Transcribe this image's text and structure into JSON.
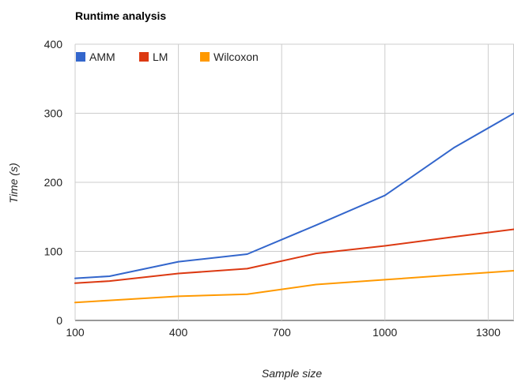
{
  "chart_data": {
    "type": "line",
    "title": "Runtime analysis",
    "xlabel": "Sample size",
    "ylabel": "Time (s)",
    "xlim": [
      100,
      1375
    ],
    "ylim": [
      0,
      400
    ],
    "xticks": [
      100,
      400,
      700,
      1000,
      1300
    ],
    "yticks": [
      0,
      100,
      200,
      300,
      400
    ],
    "xtick_labels": [
      "100",
      "400",
      "700",
      "1000",
      "1300"
    ],
    "ytick_labels": [
      "0",
      "100",
      "200",
      "300",
      "400"
    ],
    "grid": true,
    "legend_position": "top-left",
    "x": [
      100,
      200,
      400,
      600,
      800,
      1000,
      1200,
      1375
    ],
    "series": [
      {
        "name": "AMM",
        "color": "#3366cc",
        "values": [
          61,
          64,
          85,
          96,
          138,
          181,
          250,
          300
        ]
      },
      {
        "name": "LM",
        "color": "#dc3912",
        "values": [
          54,
          57,
          68,
          75,
          97,
          108,
          121,
          132
        ]
      },
      {
        "name": "Wilcoxon",
        "color": "#ff9900",
        "values": [
          26,
          29,
          35,
          38,
          52,
          59,
          66,
          72
        ]
      }
    ]
  }
}
